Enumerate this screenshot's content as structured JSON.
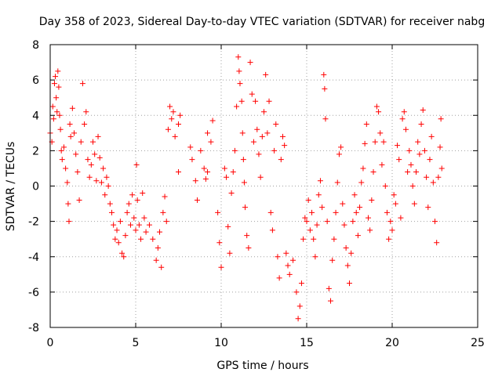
{
  "chart_data": {
    "type": "scatter",
    "title": "Day 358 of 2023, Sidereal Day-to-day VTEC variation (SDTVAR) for receiver nabg",
    "xlabel": "GPS time / hours",
    "ylabel": "SDTVAR / TECUs",
    "xlim": [
      0,
      25
    ],
    "ylim": [
      -8,
      8
    ],
    "xticks": [
      0,
      5,
      10,
      15,
      20,
      25
    ],
    "yticks": [
      -8,
      -6,
      -4,
      -2,
      0,
      2,
      4,
      6,
      8
    ],
    "xtick_labels": [
      "0",
      "5",
      "10",
      "15",
      "20",
      "25"
    ],
    "ytick_labels": [
      "-8",
      "-6",
      "-4",
      "-2",
      "0",
      "2",
      "4",
      "6",
      "8"
    ],
    "grid": true,
    "marker": "+",
    "series_color": "#ff0000",
    "series": [
      {
        "name": "SDTVAR",
        "points": [
          [
            0.0,
            3.0
          ],
          [
            0.1,
            2.5
          ],
          [
            0.15,
            4.5
          ],
          [
            0.2,
            3.8
          ],
          [
            0.25,
            5.8
          ],
          [
            0.3,
            6.2
          ],
          [
            0.35,
            5.0
          ],
          [
            0.4,
            4.2
          ],
          [
            0.45,
            6.5
          ],
          [
            0.5,
            5.6
          ],
          [
            0.55,
            4.0
          ],
          [
            0.6,
            3.2
          ],
          [
            0.65,
            2.0
          ],
          [
            0.7,
            1.5
          ],
          [
            0.8,
            2.2
          ],
          [
            0.9,
            1.0
          ],
          [
            1.0,
            0.2
          ],
          [
            1.05,
            -1.0
          ],
          [
            1.1,
            -2.0
          ],
          [
            1.15,
            3.5
          ],
          [
            1.2,
            2.8
          ],
          [
            1.3,
            4.4
          ],
          [
            1.4,
            3.0
          ],
          [
            1.5,
            1.8
          ],
          [
            1.6,
            0.8
          ],
          [
            1.7,
            -0.8
          ],
          [
            1.8,
            2.5
          ],
          [
            1.9,
            5.8
          ],
          [
            2.0,
            3.5
          ],
          [
            2.1,
            4.2
          ],
          [
            2.2,
            1.5
          ],
          [
            2.3,
            0.5
          ],
          [
            2.4,
            1.2
          ],
          [
            2.5,
            2.5
          ],
          [
            2.6,
            1.8
          ],
          [
            2.7,
            0.3
          ],
          [
            2.8,
            2.8
          ],
          [
            2.9,
            1.6
          ],
          [
            3.0,
            0.2
          ],
          [
            3.1,
            1.0
          ],
          [
            3.2,
            -0.5
          ],
          [
            3.3,
            0.5
          ],
          [
            3.4,
            0.0
          ],
          [
            3.5,
            -1.0
          ],
          [
            3.6,
            -1.5
          ],
          [
            3.7,
            -2.2
          ],
          [
            3.8,
            -3.0
          ],
          [
            3.9,
            -2.5
          ],
          [
            4.0,
            -3.2
          ],
          [
            4.1,
            -2.0
          ],
          [
            4.2,
            -3.8
          ],
          [
            4.3,
            -4.0
          ],
          [
            4.4,
            -2.8
          ],
          [
            4.5,
            -1.5
          ],
          [
            4.6,
            -1.0
          ],
          [
            4.7,
            -2.2
          ],
          [
            4.8,
            -0.5
          ],
          [
            4.9,
            -1.8
          ],
          [
            5.0,
            -2.5
          ],
          [
            5.05,
            1.2
          ],
          [
            5.1,
            -0.8
          ],
          [
            5.2,
            -2.2
          ],
          [
            5.3,
            -3.0
          ],
          [
            5.4,
            -0.4
          ],
          [
            5.5,
            -1.8
          ],
          [
            5.6,
            -2.6
          ],
          [
            5.8,
            -2.2
          ],
          [
            6.0,
            -3.0
          ],
          [
            6.2,
            -4.2
          ],
          [
            6.3,
            -3.5
          ],
          [
            6.4,
            -2.6
          ],
          [
            6.5,
            -4.6
          ],
          [
            6.6,
            -1.5
          ],
          [
            6.7,
            -0.6
          ],
          [
            6.8,
            -2.0
          ],
          [
            6.9,
            3.2
          ],
          [
            7.0,
            4.5
          ],
          [
            7.1,
            3.8
          ],
          [
            7.2,
            4.2
          ],
          [
            7.3,
            2.8
          ],
          [
            7.5,
            3.5
          ],
          [
            7.6,
            4.0
          ],
          [
            7.5,
            0.8
          ],
          [
            8.2,
            2.2
          ],
          [
            8.3,
            1.5
          ],
          [
            8.5,
            0.3
          ],
          [
            8.6,
            -0.8
          ],
          [
            8.8,
            2.0
          ],
          [
            9.0,
            1.0
          ],
          [
            9.1,
            0.4
          ],
          [
            9.2,
            3.0
          ],
          [
            9.4,
            2.5
          ],
          [
            9.5,
            3.7
          ],
          [
            9.2,
            0.8
          ],
          [
            9.8,
            -1.5
          ],
          [
            9.9,
            -3.2
          ],
          [
            10.0,
            -4.6
          ],
          [
            10.2,
            1.0
          ],
          [
            10.3,
            0.5
          ],
          [
            10.4,
            -2.3
          ],
          [
            10.5,
            -3.8
          ],
          [
            10.6,
            -0.4
          ],
          [
            10.7,
            0.8
          ],
          [
            10.8,
            2.0
          ],
          [
            10.9,
            4.5
          ],
          [
            11.0,
            7.3
          ],
          [
            11.05,
            6.5
          ],
          [
            11.1,
            5.8
          ],
          [
            11.2,
            4.8
          ],
          [
            11.25,
            3.0
          ],
          [
            11.3,
            1.5
          ],
          [
            11.35,
            0.2
          ],
          [
            11.4,
            -1.2
          ],
          [
            11.5,
            -2.8
          ],
          [
            11.6,
            -3.5
          ],
          [
            11.7,
            7.0
          ],
          [
            11.8,
            5.2
          ],
          [
            11.9,
            2.5
          ],
          [
            12.0,
            4.8
          ],
          [
            12.1,
            3.2
          ],
          [
            12.2,
            1.8
          ],
          [
            12.3,
            0.5
          ],
          [
            12.4,
            2.8
          ],
          [
            12.5,
            4.2
          ],
          [
            12.6,
            6.3
          ],
          [
            12.7,
            3.0
          ],
          [
            12.8,
            4.8
          ],
          [
            12.9,
            -1.5
          ],
          [
            13.0,
            -2.5
          ],
          [
            13.1,
            2.0
          ],
          [
            13.2,
            3.5
          ],
          [
            13.3,
            -4.0
          ],
          [
            13.4,
            -5.2
          ],
          [
            13.5,
            1.5
          ],
          [
            13.6,
            2.8
          ],
          [
            13.7,
            2.3
          ],
          [
            13.8,
            -3.8
          ],
          [
            13.9,
            -4.5
          ],
          [
            14.0,
            -5.0
          ],
          [
            14.2,
            -4.2
          ],
          [
            14.4,
            -6.0
          ],
          [
            14.5,
            -7.5
          ],
          [
            14.6,
            -6.8
          ],
          [
            14.7,
            -5.5
          ],
          [
            14.8,
            -3.0
          ],
          [
            14.9,
            -1.8
          ],
          [
            15.0,
            -2.0
          ],
          [
            15.1,
            -0.8
          ],
          [
            15.2,
            -2.5
          ],
          [
            15.3,
            -1.5
          ],
          [
            15.4,
            -3.0
          ],
          [
            15.5,
            -4.0
          ],
          [
            15.6,
            -2.2
          ],
          [
            15.7,
            -0.5
          ],
          [
            15.8,
            0.3
          ],
          [
            15.9,
            -1.2
          ],
          [
            16.0,
            6.3
          ],
          [
            16.05,
            5.5
          ],
          [
            16.1,
            3.8
          ],
          [
            16.2,
            -2.0
          ],
          [
            16.3,
            -5.8
          ],
          [
            16.4,
            -6.5
          ],
          [
            16.5,
            -4.2
          ],
          [
            16.6,
            -3.0
          ],
          [
            16.7,
            -1.5
          ],
          [
            16.8,
            0.2
          ],
          [
            16.9,
            1.8
          ],
          [
            17.0,
            2.2
          ],
          [
            17.1,
            -1.0
          ],
          [
            17.2,
            -2.2
          ],
          [
            17.3,
            -3.5
          ],
          [
            17.4,
            -4.5
          ],
          [
            17.5,
            -5.5
          ],
          [
            17.6,
            -3.8
          ],
          [
            17.7,
            -2.0
          ],
          [
            17.8,
            -0.5
          ],
          [
            17.9,
            -1.5
          ],
          [
            18.0,
            -2.8
          ],
          [
            18.1,
            -1.2
          ],
          [
            18.2,
            0.2
          ],
          [
            18.3,
            1.0
          ],
          [
            18.4,
            2.4
          ],
          [
            18.5,
            3.5
          ],
          [
            18.6,
            -1.8
          ],
          [
            18.7,
            -2.5
          ],
          [
            18.8,
            -0.8
          ],
          [
            18.9,
            0.8
          ],
          [
            19.0,
            2.5
          ],
          [
            19.1,
            4.5
          ],
          [
            19.2,
            4.2
          ],
          [
            19.3,
            3.0
          ],
          [
            19.4,
            1.2
          ],
          [
            19.5,
            2.5
          ],
          [
            19.6,
            0.0
          ],
          [
            19.7,
            -1.5
          ],
          [
            19.8,
            -3.0
          ],
          [
            19.9,
            -2.0
          ],
          [
            20.0,
            -2.5
          ],
          [
            20.1,
            -0.5
          ],
          [
            20.2,
            -1.0
          ],
          [
            20.3,
            2.3
          ],
          [
            20.4,
            1.5
          ],
          [
            20.5,
            -1.8
          ],
          [
            20.6,
            3.8
          ],
          [
            20.7,
            4.2
          ],
          [
            20.8,
            3.2
          ],
          [
            20.9,
            0.8
          ],
          [
            21.0,
            2.0
          ],
          [
            21.1,
            1.2
          ],
          [
            21.2,
            0.0
          ],
          [
            21.3,
            -1.0
          ],
          [
            21.4,
            0.8
          ],
          [
            21.5,
            2.5
          ],
          [
            21.6,
            1.8
          ],
          [
            21.7,
            3.5
          ],
          [
            21.8,
            4.3
          ],
          [
            21.9,
            2.0
          ],
          [
            22.0,
            0.5
          ],
          [
            22.1,
            -1.2
          ],
          [
            22.2,
            1.5
          ],
          [
            22.3,
            2.8
          ],
          [
            22.4,
            0.2
          ],
          [
            22.5,
            -2.0
          ],
          [
            22.6,
            -3.2
          ],
          [
            22.7,
            0.5
          ],
          [
            22.8,
            2.2
          ],
          [
            22.85,
            3.8
          ],
          [
            22.9,
            1.0
          ]
        ]
      }
    ]
  }
}
